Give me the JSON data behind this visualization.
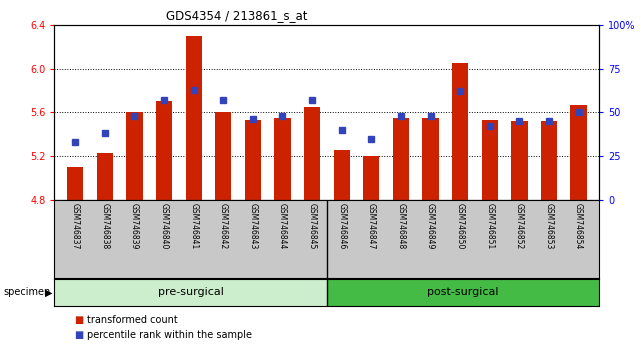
{
  "title": "GDS4354 / 213861_s_at",
  "samples": [
    "GSM746837",
    "GSM746838",
    "GSM746839",
    "GSM746840",
    "GSM746841",
    "GSM746842",
    "GSM746843",
    "GSM746844",
    "GSM746845",
    "GSM746846",
    "GSM746847",
    "GSM746848",
    "GSM746849",
    "GSM746850",
    "GSM746851",
    "GSM746852",
    "GSM746853",
    "GSM746854"
  ],
  "red_bars": [
    5.1,
    5.23,
    5.6,
    5.7,
    6.3,
    5.6,
    5.53,
    5.55,
    5.65,
    5.26,
    5.2,
    5.55,
    5.55,
    6.05,
    5.53,
    5.52,
    5.52,
    5.67
  ],
  "blue_squares": [
    33,
    38,
    48,
    57,
    63,
    57,
    46,
    48,
    57,
    40,
    35,
    48,
    48,
    62,
    42,
    45,
    45,
    50
  ],
  "pre_count": 9,
  "post_count": 9,
  "ylim_left": [
    4.8,
    6.4
  ],
  "ylim_right": [
    0,
    100
  ],
  "yticks_left": [
    4.8,
    5.2,
    5.6,
    6.0,
    6.4
  ],
  "yticks_right": [
    0,
    25,
    50,
    75,
    100
  ],
  "bar_color": "#cc2200",
  "square_color": "#3344bb",
  "bg_color": "#ffffff",
  "xlabel_area_color": "#c8c8c8",
  "pre_color": "#cceecc",
  "post_color": "#44bb44",
  "legend_red": "transformed count",
  "legend_blue": "percentile rank within the sample",
  "specimen_label": "specimen",
  "grid_yticks": [
    6.0,
    5.6,
    5.2
  ]
}
